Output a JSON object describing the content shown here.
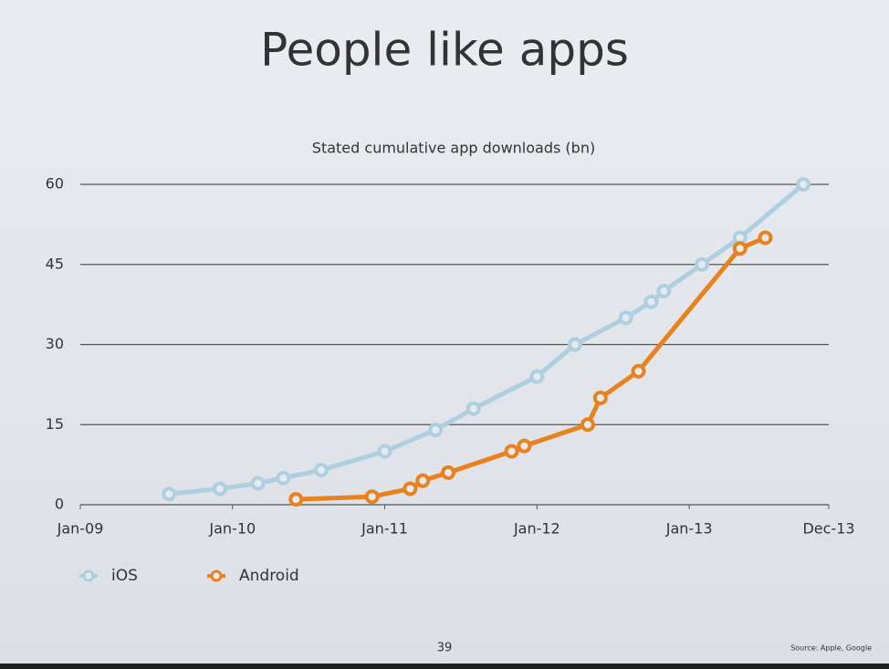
{
  "slide": {
    "title": "People like apps",
    "page_number": "39",
    "source": "Source: Apple, Google"
  },
  "chart_data": {
    "type": "line",
    "title": "Stated cumulative app downloads (bn)",
    "xlim": [
      "2009-01",
      "2013-12"
    ],
    "xticks": [
      {
        "value": "2009-01",
        "label": "Jan-09"
      },
      {
        "value": "2010-01",
        "label": "Jan-10"
      },
      {
        "value": "2011-01",
        "label": "Jan-11"
      },
      {
        "value": "2012-01",
        "label": "Jan-12"
      },
      {
        "value": "2013-01",
        "label": "Jan-13"
      },
      {
        "value": "2013-12",
        "label": "Dec-13"
      }
    ],
    "ylim": [
      0,
      60
    ],
    "yticks": [
      0,
      15,
      30,
      45,
      60
    ],
    "grid": true,
    "legend": "bottom-left",
    "series": [
      {
        "name": "iOS",
        "color": "#aecfe0",
        "x": [
          "2009-08",
          "2009-12",
          "2010-03",
          "2010-05",
          "2010-08",
          "2011-01",
          "2011-05",
          "2011-08",
          "2012-01",
          "2012-04",
          "2012-08",
          "2012-10",
          "2012-11",
          "2013-02",
          "2013-05",
          "2013-10"
        ],
        "values": [
          2,
          3,
          4,
          5,
          6.5,
          10,
          14,
          18,
          24,
          30,
          35,
          38,
          40,
          45,
          50,
          60
        ]
      },
      {
        "name": "Android",
        "color": "#e8821e",
        "x": [
          "2010-06",
          "2010-12",
          "2011-03",
          "2011-04",
          "2011-06",
          "2011-11",
          "2011-12",
          "2012-05",
          "2012-06",
          "2012-09",
          "2013-05",
          "2013-07"
        ],
        "values": [
          1,
          1.5,
          3,
          4.5,
          6,
          10,
          11,
          15,
          20,
          25,
          48,
          50
        ]
      }
    ]
  }
}
